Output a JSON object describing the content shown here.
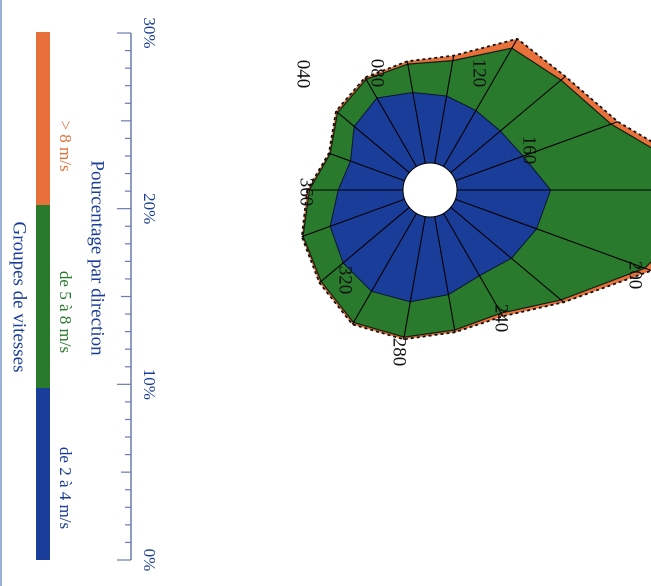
{
  "chart_data": {
    "type": "polar-area",
    "subtype": "wind rose, stacked speed groups",
    "orientation": "rotated 90 degrees clockwise",
    "legend": {
      "title": "Groupes de vitesses",
      "items": [
        {
          "label": "de 2 à 4 m/s",
          "color": "#1b3d9a"
        },
        {
          "label": "de 5 à 8 m/s",
          "color": "#2a7a2e"
        },
        {
          "label": "> 8 m/s",
          "color": "#e8703a"
        }
      ]
    },
    "scale": {
      "title": "Pourcentage par direction",
      "range": [
        0,
        30
      ],
      "ticks": [
        "0%",
        "10%",
        "20%",
        "30%"
      ],
      "minor_step": 1
    },
    "direction_labels": [
      "040",
      "080",
      "120",
      "160",
      "200",
      "240",
      "280",
      "320",
      "360"
    ],
    "directions": [
      0,
      20,
      40,
      60,
      80,
      100,
      120,
      140,
      160,
      180,
      200,
      220,
      240,
      260,
      280,
      300,
      320,
      340
    ],
    "series": [
      {
        "name": "de 2 à 4 m/s",
        "values": [
          9,
          11,
          12,
          12.5,
          12,
          11,
          10,
          11,
          12,
          13,
          10,
          9,
          9,
          9.5,
          10,
          11,
          10,
          8
        ]
      },
      {
        "name": "de 5 à 8 m/s",
        "values": [
          4,
          4,
          4,
          5,
          5,
          5,
          6,
          9,
          16,
          24,
          13,
          11,
          10,
          5,
          4,
          3,
          3,
          3
        ]
      },
      {
        "name": "> 8 m/s",
        "values": [
          0.3,
          0.2,
          0.3,
          0.3,
          0.3,
          0.3,
          0.5,
          0.5,
          1.0,
          1.5,
          1.0,
          0.8,
          1.5,
          0.7,
          0.4,
          0.3,
          0.3,
          0.2
        ]
      }
    ]
  }
}
